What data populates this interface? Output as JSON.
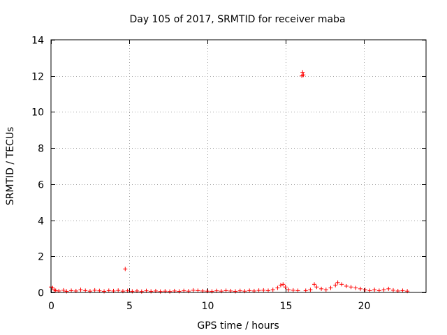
{
  "chart_data": {
    "type": "scatter",
    "title": "Day 105 of 2017, SRMTID for receiver maba",
    "xlabel": "GPS time / hours",
    "ylabel": "SRMTID / TECUs",
    "xlim": [
      0,
      24
    ],
    "ylim": [
      0,
      14
    ],
    "xticks": [
      0,
      5,
      10,
      15,
      20
    ],
    "yticks": [
      0,
      2,
      4,
      6,
      8,
      10,
      12,
      14
    ],
    "grid": true,
    "marker": "plus",
    "color": "#ff0000",
    "series": [
      {
        "points": [
          [
            0.0,
            0.3
          ],
          [
            0.1,
            0.25
          ],
          [
            0.2,
            0.15
          ],
          [
            0.3,
            0.1
          ],
          [
            0.5,
            0.08
          ],
          [
            0.8,
            0.12
          ],
          [
            1.0,
            0.06
          ],
          [
            1.3,
            0.1
          ],
          [
            1.6,
            0.08
          ],
          [
            1.9,
            0.15
          ],
          [
            2.2,
            0.1
          ],
          [
            2.5,
            0.07
          ],
          [
            2.8,
            0.12
          ],
          [
            3.1,
            0.09
          ],
          [
            3.4,
            0.06
          ],
          [
            3.7,
            0.1
          ],
          [
            4.0,
            0.08
          ],
          [
            4.3,
            0.11
          ],
          [
            4.6,
            0.07
          ],
          [
            4.75,
            1.3
          ],
          [
            4.9,
            0.09
          ],
          [
            5.2,
            0.06
          ],
          [
            5.5,
            0.08
          ],
          [
            5.8,
            0.05
          ],
          [
            6.1,
            0.09
          ],
          [
            6.4,
            0.06
          ],
          [
            6.7,
            0.08
          ],
          [
            7.0,
            0.05
          ],
          [
            7.3,
            0.07
          ],
          [
            7.6,
            0.05
          ],
          [
            7.9,
            0.08
          ],
          [
            8.2,
            0.06
          ],
          [
            8.5,
            0.09
          ],
          [
            8.8,
            0.07
          ],
          [
            9.1,
            0.12
          ],
          [
            9.4,
            0.1
          ],
          [
            9.7,
            0.08
          ],
          [
            10.0,
            0.07
          ],
          [
            10.3,
            0.06
          ],
          [
            10.6,
            0.09
          ],
          [
            10.9,
            0.07
          ],
          [
            11.2,
            0.1
          ],
          [
            11.5,
            0.08
          ],
          [
            11.8,
            0.06
          ],
          [
            12.1,
            0.09
          ],
          [
            12.4,
            0.07
          ],
          [
            12.7,
            0.1
          ],
          [
            13.0,
            0.08
          ],
          [
            13.3,
            0.11
          ],
          [
            13.6,
            0.12
          ],
          [
            13.9,
            0.1
          ],
          [
            14.2,
            0.15
          ],
          [
            14.5,
            0.25
          ],
          [
            14.7,
            0.4
          ],
          [
            14.85,
            0.45
          ],
          [
            15.0,
            0.3
          ],
          [
            15.2,
            0.15
          ],
          [
            15.5,
            0.12
          ],
          [
            15.8,
            0.1
          ],
          [
            16.05,
            12.0
          ],
          [
            16.1,
            12.2
          ],
          [
            16.15,
            12.05
          ],
          [
            16.3,
            0.1
          ],
          [
            16.6,
            0.15
          ],
          [
            16.85,
            0.45
          ],
          [
            17.0,
            0.3
          ],
          [
            17.3,
            0.2
          ],
          [
            17.6,
            0.15
          ],
          [
            17.9,
            0.25
          ],
          [
            18.2,
            0.4
          ],
          [
            18.35,
            0.55
          ],
          [
            18.6,
            0.45
          ],
          [
            18.9,
            0.35
          ],
          [
            19.2,
            0.3
          ],
          [
            19.5,
            0.25
          ],
          [
            19.8,
            0.2
          ],
          [
            20.1,
            0.15
          ],
          [
            20.4,
            0.1
          ],
          [
            20.7,
            0.15
          ],
          [
            21.0,
            0.1
          ],
          [
            21.3,
            0.15
          ],
          [
            21.6,
            0.2
          ],
          [
            21.9,
            0.12
          ],
          [
            22.2,
            0.08
          ],
          [
            22.5,
            0.1
          ],
          [
            22.8,
            0.07
          ]
        ]
      }
    ]
  }
}
